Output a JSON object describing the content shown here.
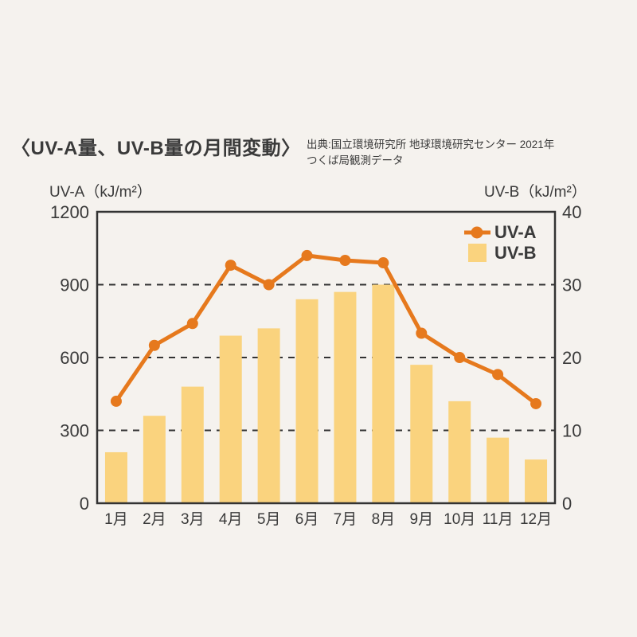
{
  "header": {
    "title": "〈UV-A量、UV-B量の月間変動〉",
    "source_line1": "出典:国立環境研究所 地球環境研究センター 2021年",
    "source_line2": "つくば局観測データ"
  },
  "chart_data": {
    "type": "bar+line",
    "title": "〈UV-A量、UV-B量の月間変動〉",
    "categories": [
      "1月",
      "2月",
      "3月",
      "4月",
      "5月",
      "6月",
      "7月",
      "8月",
      "9月",
      "10月",
      "11月",
      "12月"
    ],
    "series": [
      {
        "name": "UV-A",
        "type": "line",
        "axis": "left",
        "color": "#E6791D",
        "values": [
          420,
          650,
          740,
          980,
          900,
          1020,
          1000,
          990,
          700,
          600,
          530,
          410
        ]
      },
      {
        "name": "UV-B",
        "type": "bar",
        "axis": "right",
        "color": "#FAD37E",
        "values": [
          7,
          12,
          16,
          23,
          24,
          28,
          29,
          30,
          19,
          14,
          9,
          6
        ]
      }
    ],
    "left_axis": {
      "label": "UV-A（kJ/m²）",
      "min": 0,
      "max": 1200,
      "ticks": [
        0,
        300,
        600,
        900,
        1200
      ]
    },
    "right_axis": {
      "label": "UV-B（kJ/m²）",
      "min": 0,
      "max": 40,
      "ticks": [
        0,
        10,
        20,
        30,
        40
      ]
    },
    "gridlines": {
      "style": "dashed",
      "at_left_axis_values": [
        300,
        600,
        900
      ]
    },
    "legend": {
      "position": "top-right-inside"
    }
  },
  "colors": {
    "background": "#F5F2EE",
    "text": "#3A3A3A",
    "frame": "#333333",
    "gridline": "#333333",
    "uva_line": "#E6791D",
    "uvb_bar": "#FAD37E"
  }
}
